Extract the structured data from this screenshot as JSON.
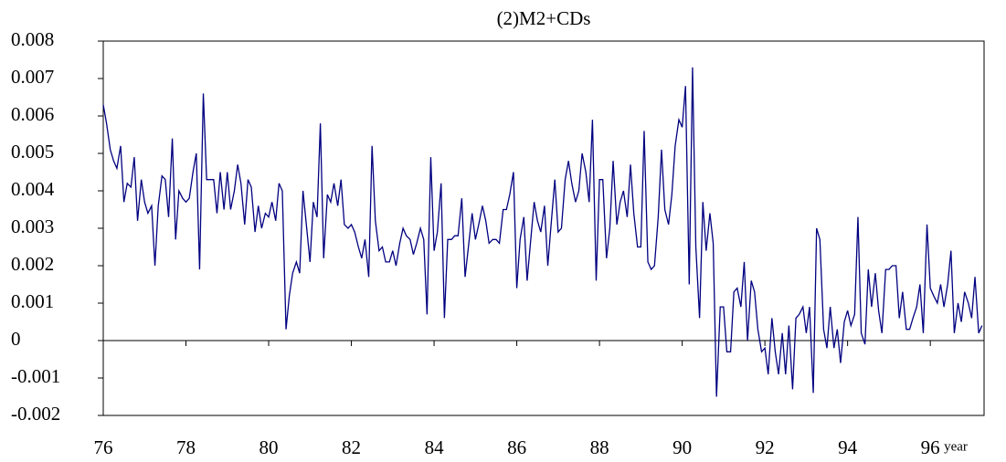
{
  "chart_data": {
    "type": "line",
    "title": "(2)M2+CDs",
    "x_label": "year",
    "xlim": [
      76,
      97.3
    ],
    "xticks": [
      76,
      78,
      80,
      82,
      84,
      86,
      88,
      90,
      92,
      94,
      96
    ],
    "ylim": [
      -0.002,
      0.008
    ],
    "yticks": [
      -0.002,
      -0.001,
      0,
      0.001,
      0.002,
      0.003,
      0.004,
      0.005,
      0.006,
      0.007,
      0.008
    ],
    "x": [
      76,
      76.08,
      76.17,
      76.25,
      76.33,
      76.42,
      76.5,
      76.58,
      76.67,
      76.75,
      76.83,
      76.92,
      77,
      77.08,
      77.17,
      77.25,
      77.33,
      77.42,
      77.5,
      77.58,
      77.67,
      77.75,
      77.83,
      77.92,
      78,
      78.08,
      78.17,
      78.25,
      78.33,
      78.42,
      78.5,
      78.58,
      78.67,
      78.75,
      78.83,
      78.92,
      79,
      79.08,
      79.17,
      79.25,
      79.33,
      79.42,
      79.5,
      79.58,
      79.67,
      79.75,
      79.83,
      79.92,
      80,
      80.08,
      80.17,
      80.25,
      80.33,
      80.42,
      80.5,
      80.58,
      80.67,
      80.75,
      80.83,
      80.92,
      81,
      81.08,
      81.17,
      81.25,
      81.33,
      81.42,
      81.5,
      81.58,
      81.67,
      81.75,
      81.83,
      81.92,
      82,
      82.08,
      82.17,
      82.25,
      82.33,
      82.42,
      82.5,
      82.58,
      82.67,
      82.75,
      82.83,
      82.92,
      83,
      83.08,
      83.17,
      83.25,
      83.33,
      83.42,
      83.5,
      83.58,
      83.67,
      83.75,
      83.83,
      83.92,
      84,
      84.08,
      84.17,
      84.25,
      84.33,
      84.42,
      84.5,
      84.58,
      84.67,
      84.75,
      84.83,
      84.92,
      85,
      85.08,
      85.17,
      85.25,
      85.33,
      85.42,
      85.5,
      85.58,
      85.67,
      85.75,
      85.83,
      85.92,
      86,
      86.08,
      86.17,
      86.25,
      86.33,
      86.42,
      86.5,
      86.58,
      86.67,
      86.75,
      86.83,
      86.92,
      87,
      87.08,
      87.17,
      87.25,
      87.33,
      87.42,
      87.5,
      87.58,
      87.67,
      87.75,
      87.83,
      87.92,
      88,
      88.08,
      88.17,
      88.25,
      88.33,
      88.42,
      88.5,
      88.58,
      88.67,
      88.75,
      88.83,
      88.92,
      89,
      89.08,
      89.17,
      89.25,
      89.33,
      89.42,
      89.5,
      89.58,
      89.67,
      89.75,
      89.83,
      89.92,
      90,
      90.08,
      90.17,
      90.25,
      90.33,
      90.42,
      90.5,
      90.58,
      90.67,
      90.75,
      90.83,
      90.92,
      91,
      91.08,
      91.17,
      91.25,
      91.33,
      91.42,
      91.5,
      91.58,
      91.67,
      91.75,
      91.83,
      91.92,
      92,
      92.08,
      92.17,
      92.25,
      92.33,
      92.42,
      92.5,
      92.58,
      92.67,
      92.75,
      92.83,
      92.92,
      93,
      93.08,
      93.17,
      93.25,
      93.33,
      93.42,
      93.5,
      93.58,
      93.67,
      93.75,
      93.83,
      93.92,
      94,
      94.08,
      94.17,
      94.25,
      94.33,
      94.42,
      94.5,
      94.58,
      94.67,
      94.75,
      94.83,
      94.92,
      95,
      95.08,
      95.17,
      95.25,
      95.33,
      95.42,
      95.5,
      95.58,
      95.67,
      95.75,
      95.83,
      95.92,
      96,
      96.08,
      96.17,
      96.25,
      96.33,
      96.42,
      96.5,
      96.58,
      96.67,
      96.75,
      96.83,
      96.92,
      97,
      97.08,
      97.17,
      97.25
    ],
    "series": [
      {
        "name": "M2+CDs",
        "color": "#000080",
        "values": [
          0.0063,
          0.0058,
          0.0051,
          0.0048,
          0.0046,
          0.0052,
          0.0037,
          0.0042,
          0.0041,
          0.0049,
          0.0032,
          0.0043,
          0.0037,
          0.0034,
          0.0036,
          0.002,
          0.0036,
          0.0044,
          0.0043,
          0.0033,
          0.0054,
          0.0027,
          0.004,
          0.0038,
          0.0037,
          0.0038,
          0.0045,
          0.005,
          0.0019,
          0.0066,
          0.0043,
          0.0043,
          0.0043,
          0.0034,
          0.0045,
          0.0035,
          0.0045,
          0.0035,
          0.004,
          0.0047,
          0.0042,
          0.0031,
          0.0043,
          0.0041,
          0.0029,
          0.0036,
          0.003,
          0.0034,
          0.0033,
          0.0037,
          0.0032,
          0.0042,
          0.004,
          0.0003,
          0.0012,
          0.0018,
          0.0021,
          0.0018,
          0.004,
          0.003,
          0.0021,
          0.0037,
          0.0033,
          0.0058,
          0.0022,
          0.0039,
          0.0037,
          0.0042,
          0.0036,
          0.0043,
          0.0031,
          0.003,
          0.0031,
          0.0029,
          0.0025,
          0.0022,
          0.0027,
          0.0017,
          0.0052,
          0.0032,
          0.0024,
          0.0025,
          0.0021,
          0.0021,
          0.0024,
          0.002,
          0.0026,
          0.003,
          0.0028,
          0.0027,
          0.0023,
          0.0026,
          0.003,
          0.0027,
          0.0007,
          0.0049,
          0.0024,
          0.0029,
          0.0042,
          0.0006,
          0.0027,
          0.0027,
          0.0028,
          0.0028,
          0.0038,
          0.0017,
          0.0025,
          0.0034,
          0.0027,
          0.0031,
          0.0036,
          0.0032,
          0.0026,
          0.0027,
          0.0027,
          0.0026,
          0.0035,
          0.0035,
          0.0039,
          0.0045,
          0.0014,
          0.0027,
          0.0033,
          0.0016,
          0.0026,
          0.0037,
          0.0032,
          0.0029,
          0.0036,
          0.002,
          0.0031,
          0.0043,
          0.0029,
          0.003,
          0.0043,
          0.0048,
          0.0042,
          0.0037,
          0.004,
          0.005,
          0.0045,
          0.0037,
          0.0059,
          0.0016,
          0.0043,
          0.0043,
          0.0022,
          0.003,
          0.0048,
          0.0031,
          0.0037,
          0.004,
          0.0033,
          0.0047,
          0.0034,
          0.0025,
          0.0025,
          0.0056,
          0.0021,
          0.0019,
          0.002,
          0.0033,
          0.0051,
          0.0035,
          0.0031,
          0.0039,
          0.0052,
          0.0059,
          0.0057,
          0.0068,
          0.0015,
          0.0073,
          0.0025,
          0.0006,
          0.0037,
          0.0024,
          0.0034,
          0.0026,
          -0.0015,
          0.0009,
          0.0009,
          -0.0003,
          -0.0003,
          0.0013,
          0.0014,
          0.0009,
          0.0021,
          0.0,
          0.0016,
          0.0013,
          0.0003,
          -0.0003,
          -0.0002,
          -0.0009,
          0.0006,
          -0.0003,
          -0.0009,
          0.0002,
          -0.0009,
          0.0004,
          -0.0013,
          0.0006,
          0.0007,
          0.0009,
          0.0002,
          0.0009,
          -0.0014,
          0.003,
          0.0027,
          0.0003,
          -0.0002,
          0.0009,
          -0.0002,
          0.0003,
          -0.0006,
          0.0005,
          0.0008,
          0.0004,
          0.0007,
          0.0033,
          0.0002,
          -0.0001,
          0.0019,
          0.0009,
          0.0018,
          0.0008,
          0.0002,
          0.0019,
          0.0019,
          0.002,
          0.002,
          0.0006,
          0.0013,
          0.0003,
          0.0003,
          0.0006,
          0.0009,
          0.0015,
          0.0002,
          0.0031,
          0.0014,
          0.0012,
          0.001,
          0.0015,
          0.0009,
          0.0015,
          0.0024,
          0.0002,
          0.001,
          0.0005,
          0.0013,
          0.001,
          0.0006,
          0.0017,
          0.0002,
          0.0004
        ]
      }
    ]
  }
}
